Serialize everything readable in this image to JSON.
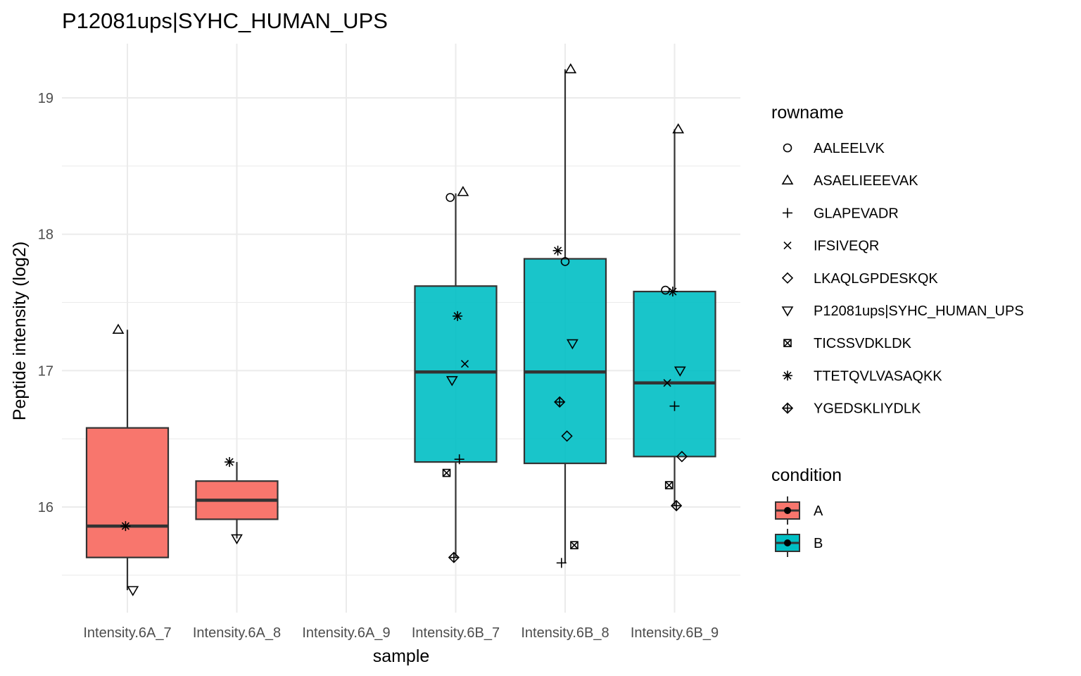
{
  "chart_data": {
    "type": "boxplot",
    "title": "P12081ups|SYHC_HUMAN_UPS",
    "xlabel": "sample",
    "ylabel": "Peptide intensity (log2)",
    "ylim": [
      15.25,
      19.4
    ],
    "y_ticks": [
      16,
      17,
      18,
      19
    ],
    "grid": true,
    "categories": [
      "Intensity.6A_7",
      "Intensity.6A_8",
      "Intensity.6A_9",
      "Intensity.6B_7",
      "Intensity.6B_8",
      "Intensity.6B_9"
    ],
    "boxes": [
      {
        "sample": "Intensity.6A_7",
        "condition": "A",
        "whisker_low": 15.39,
        "q1": 15.63,
        "median": 15.86,
        "q3": 16.58,
        "whisker_high": 17.3
      },
      {
        "sample": "Intensity.6A_8",
        "condition": "A",
        "whisker_low": 15.77,
        "q1": 15.91,
        "median": 16.05,
        "q3": 16.19,
        "whisker_high": 16.33
      },
      {
        "sample": "Intensity.6B_7",
        "condition": "B",
        "whisker_low": 15.63,
        "q1": 16.33,
        "median": 16.99,
        "q3": 17.62,
        "whisker_high": 18.3
      },
      {
        "sample": "Intensity.6B_8",
        "condition": "B",
        "whisker_low": 15.59,
        "q1": 16.32,
        "median": 16.99,
        "q3": 17.82,
        "whisker_high": 19.21
      },
      {
        "sample": "Intensity.6B_9",
        "condition": "B",
        "whisker_low": 16.01,
        "q1": 16.37,
        "median": 16.91,
        "q3": 17.58,
        "whisker_high": 18.77
      }
    ],
    "points": [
      {
        "sample": "Intensity.6A_7",
        "rowname": "ASAELIEEEVAK",
        "value": 17.3
      },
      {
        "sample": "Intensity.6A_7",
        "rowname": "TTETQVLVASAQKK",
        "value": 15.86
      },
      {
        "sample": "Intensity.6A_7",
        "rowname": "P12081ups|SYHC_HUMAN_UPS",
        "value": 15.39
      },
      {
        "sample": "Intensity.6A_8",
        "rowname": "TTETQVLVASAQKK",
        "value": 16.33
      },
      {
        "sample": "Intensity.6A_8",
        "rowname": "P12081ups|SYHC_HUMAN_UPS",
        "value": 15.77
      },
      {
        "sample": "Intensity.6B_7",
        "rowname": "ASAELIEEEVAK",
        "value": 18.31
      },
      {
        "sample": "Intensity.6B_7",
        "rowname": "AALEELVK",
        "value": 18.27
      },
      {
        "sample": "Intensity.6B_7",
        "rowname": "TTETQVLVASAQKK",
        "value": 17.4
      },
      {
        "sample": "Intensity.6B_7",
        "rowname": "IFSIVEQR",
        "value": 17.05
      },
      {
        "sample": "Intensity.6B_7",
        "rowname": "P12081ups|SYHC_HUMAN_UPS",
        "value": 16.93
      },
      {
        "sample": "Intensity.6B_7",
        "rowname": "GLAPEVADR",
        "value": 16.35
      },
      {
        "sample": "Intensity.6B_7",
        "rowname": "TICSSVDKLDK",
        "value": 16.25
      },
      {
        "sample": "Intensity.6B_7",
        "rowname": "YGEDSKLIYDLK",
        "value": 15.63
      },
      {
        "sample": "Intensity.6B_8",
        "rowname": "ASAELIEEEVAK",
        "value": 19.21
      },
      {
        "sample": "Intensity.6B_8",
        "rowname": "TTETQVLVASAQKK",
        "value": 17.88
      },
      {
        "sample": "Intensity.6B_8",
        "rowname": "AALEELVK",
        "value": 17.8
      },
      {
        "sample": "Intensity.6B_8",
        "rowname": "P12081ups|SYHC_HUMAN_UPS",
        "value": 17.2
      },
      {
        "sample": "Intensity.6B_8",
        "rowname": "YGEDSKLIYDLK",
        "value": 16.77
      },
      {
        "sample": "Intensity.6B_8",
        "rowname": "LKAQLGPDESKQK",
        "value": 16.52
      },
      {
        "sample": "Intensity.6B_8",
        "rowname": "TICSSVDKLDK",
        "value": 15.72
      },
      {
        "sample": "Intensity.6B_8",
        "rowname": "GLAPEVADR",
        "value": 15.59
      },
      {
        "sample": "Intensity.6B_9",
        "rowname": "ASAELIEEEVAK",
        "value": 18.77
      },
      {
        "sample": "Intensity.6B_9",
        "rowname": "AALEELVK",
        "value": 17.59
      },
      {
        "sample": "Intensity.6B_9",
        "rowname": "TTETQVLVASAQKK",
        "value": 17.58
      },
      {
        "sample": "Intensity.6B_9",
        "rowname": "P12081ups|SYHC_HUMAN_UPS",
        "value": 17.0
      },
      {
        "sample": "Intensity.6B_9",
        "rowname": "IFSIVEQR",
        "value": 16.91
      },
      {
        "sample": "Intensity.6B_9",
        "rowname": "GLAPEVADR",
        "value": 16.74
      },
      {
        "sample": "Intensity.6B_9",
        "rowname": "LKAQLGPDESKQK",
        "value": 16.37
      },
      {
        "sample": "Intensity.6B_9",
        "rowname": "TICSSVDKLDK",
        "value": 16.16
      },
      {
        "sample": "Intensity.6B_9",
        "rowname": "YGEDSKLIYDLK",
        "value": 16.01
      }
    ],
    "legend_shape": {
      "title": "rowname",
      "entries": [
        {
          "label": "AALEELVK",
          "shape": "circle-open"
        },
        {
          "label": "ASAELIEEEVAK",
          "shape": "triangle-up-open"
        },
        {
          "label": "GLAPEVADR",
          "shape": "plus"
        },
        {
          "label": "IFSIVEQR",
          "shape": "cross"
        },
        {
          "label": "LKAQLGPDESKQK",
          "shape": "diamond-open"
        },
        {
          "label": "P12081ups|SYHC_HUMAN_UPS",
          "shape": "triangle-down-open"
        },
        {
          "label": "TICSSVDKLDK",
          "shape": "square-cross"
        },
        {
          "label": "TTETQVLVASAQKK",
          "shape": "asterisk"
        },
        {
          "label": "YGEDSKLIYDLK",
          "shape": "diamond-plus"
        }
      ]
    },
    "legend_fill": {
      "title": "condition",
      "entries": [
        {
          "label": "A",
          "color": "#F8766D"
        },
        {
          "label": "B",
          "color": "#00BFC4"
        }
      ]
    },
    "legend_placement": "right"
  }
}
